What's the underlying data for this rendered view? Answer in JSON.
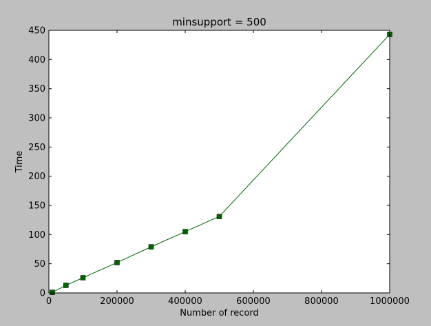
{
  "chart_data": {
    "type": "line",
    "title": "minsupport = 500",
    "xlabel": "Number of record",
    "ylabel": "Time",
    "xlim": [
      0,
      1000000
    ],
    "ylim": [
      0,
      450
    ],
    "xticks": [
      0,
      200000,
      400000,
      600000,
      800000,
      1000000
    ],
    "xtick_labels": [
      "0",
      "200000",
      "400000",
      "600000",
      "800000",
      "1000000"
    ],
    "yticks": [
      0,
      50,
      100,
      150,
      200,
      250,
      300,
      350,
      400,
      450
    ],
    "ytick_labels": [
      "0",
      "50",
      "100",
      "150",
      "200",
      "250",
      "300",
      "350",
      "400",
      "450"
    ],
    "grid": false,
    "series": [
      {
        "x": [
          10000,
          50000,
          100000,
          200000,
          300000,
          400000,
          500000,
          1000000
        ],
        "y": [
          1,
          13,
          26,
          52,
          79,
          105,
          131,
          443
        ],
        "color": "#006400",
        "marker": "square"
      }
    ]
  }
}
